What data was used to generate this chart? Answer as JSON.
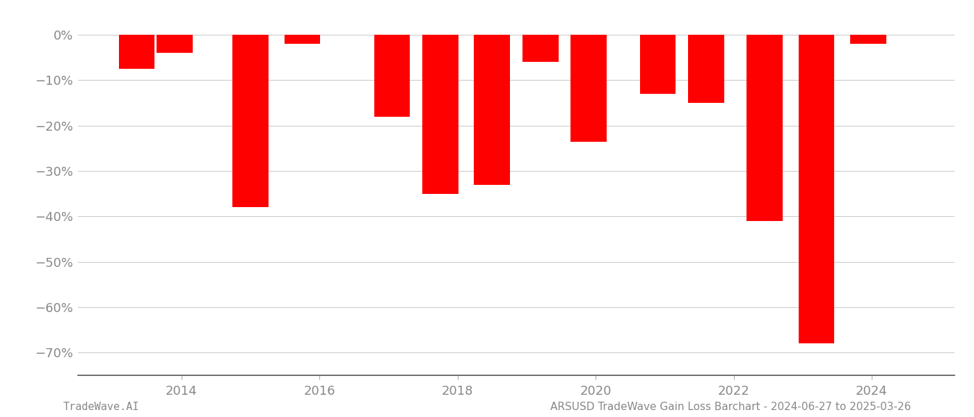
{
  "bars": [
    {
      "x": 2013.35,
      "value": -7.5
    },
    {
      "x": 2013.9,
      "value": -4.0
    },
    {
      "x": 2015.0,
      "value": -38.0
    },
    {
      "x": 2015.75,
      "value": -2.0
    },
    {
      "x": 2017.05,
      "value": -18.0
    },
    {
      "x": 2017.75,
      "value": -35.0
    },
    {
      "x": 2018.5,
      "value": -33.0
    },
    {
      "x": 2019.2,
      "value": -6.0
    },
    {
      "x": 2019.9,
      "value": -23.5
    },
    {
      "x": 2020.9,
      "value": -13.0
    },
    {
      "x": 2021.6,
      "value": -15.0
    },
    {
      "x": 2022.45,
      "value": -41.0
    },
    {
      "x": 2023.2,
      "value": -68.0
    },
    {
      "x": 2023.95,
      "value": -2.0
    }
  ],
  "bar_color": "#ff0000",
  "bar_width": 0.52,
  "ylim": [
    -75,
    4
  ],
  "yticks": [
    0,
    -10,
    -20,
    -30,
    -40,
    -50,
    -60,
    -70
  ],
  "ytick_labels": [
    "0%",
    "−10%",
    "−20%",
    "−30%",
    "−40%",
    "−50%",
    "−60%",
    "−70%"
  ],
  "xticks": [
    2014,
    2016,
    2018,
    2020,
    2022,
    2024
  ],
  "xlim": [
    2012.5,
    2025.2
  ],
  "grid_color": "#cccccc",
  "tick_color": "#888888",
  "bottom_left_text": "TradeWave.AI",
  "bottom_right_text": "ARSUSD TradeWave Gain Loss Barchart - 2024-06-27 to 2025-03-26",
  "background_color": "#ffffff",
  "font_size_ticks": 13,
  "font_size_bottom": 11
}
